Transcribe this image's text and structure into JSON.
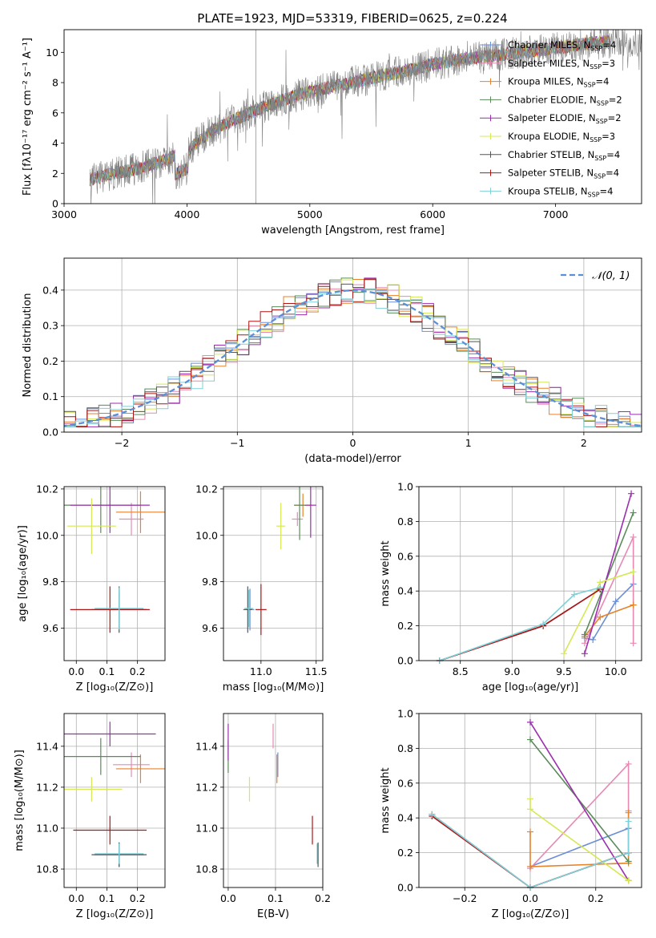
{
  "title": "PLATE=1923, MJD=53319, FIBERID=0625, z=0.224",
  "chart_data": [
    {
      "id": "spectrum",
      "type": "line",
      "xlabel": "wavelength [Angstrom, rest frame]",
      "ylabel": "Flux [fλ10⁻¹⁷ erg cm⁻² s⁻¹ A⁻¹]",
      "xlim": [
        3000,
        7700
      ],
      "ylim": [
        0,
        11.5
      ],
      "xticks": [
        "3000",
        "4000",
        "5000",
        "6000",
        "7000"
      ],
      "yticks": [
        "0",
        "2",
        "4",
        "6",
        "8",
        "10"
      ],
      "x": [
        3200,
        3400,
        3600,
        3800,
        4000,
        4200,
        4400,
        4600,
        4800,
        5000,
        5200,
        5400,
        5600,
        5800,
        6000,
        6200,
        6400,
        6600,
        6800,
        7000,
        7200,
        7400
      ],
      "values": [
        1.6,
        2.0,
        2.3,
        2.8,
        3.5,
        4.8,
        5.6,
        6.3,
        6.9,
        7.4,
        7.8,
        8.1,
        8.5,
        8.8,
        9.2,
        9.5,
        9.7,
        9.9,
        10.1,
        10.3,
        10.5,
        10.7
      ],
      "legend": [
        {
          "name": "Chabrier MILES, N",
          "n": "=4"
        },
        {
          "name": "Salpeter MILES, N",
          "n": "=3"
        },
        {
          "name": "Kroupa MILES, N",
          "n": "=4"
        },
        {
          "name": "Chabrier ELODIE, N",
          "n": "=2"
        },
        {
          "name": "Salpeter ELODIE, N",
          "n": "=2"
        },
        {
          "name": "Kroupa ELODIE, N",
          "n": "=3"
        },
        {
          "name": "Chabrier STELIB, N",
          "n": "=4"
        },
        {
          "name": "Salpeter STELIB, N",
          "n": "=4"
        },
        {
          "name": "Kroupa STELIB, N",
          "n": "=4"
        }
      ],
      "legend_sub": "SSP",
      "legend_loc": "upper right"
    },
    {
      "id": "residuals",
      "type": "histogram",
      "xlabel": "(data-model)/error",
      "ylabel": "Normed distribution",
      "xlim": [
        -2.5,
        2.5
      ],
      "ylim": [
        0,
        0.49
      ],
      "xticks": [
        "−2",
        "−1",
        "0",
        "1",
        "2"
      ],
      "yticks": [
        "0.0",
        "0.1",
        "0.2",
        "0.3",
        "0.4"
      ],
      "grid": true,
      "normal_label": "𝒩(0, 1)",
      "legend_loc": "upper right"
    },
    {
      "id": "age_vs_Z",
      "type": "errorbar",
      "xlabel": "Z [log₁₀(Z/Z⊙)]",
      "ylabel": "age  [log₁₀(age/yr)]",
      "xlim": [
        -0.04,
        0.29
      ],
      "ylim": [
        9.46,
        10.21
      ],
      "xticks": [
        "0.0",
        "0.1",
        "0.2"
      ],
      "yticks": [
        "9.6",
        "9.8",
        "10.0",
        "10.2"
      ],
      "grid": true,
      "points": [
        {
          "x": 0.14,
          "y": 9.68,
          "ex": 0.08,
          "ey": 0.08
        },
        {
          "x": 0.18,
          "y": 10.07,
          "ex": 0.04,
          "ey": 0.07
        },
        {
          "x": 0.21,
          "y": 10.1,
          "ex": 0.08,
          "ey": 0.09
        },
        {
          "x": 0.08,
          "y": 10.13,
          "ex": 0.13,
          "ey": 0.12
        },
        {
          "x": 0.11,
          "y": 10.13,
          "ex": 0.13,
          "ey": 0.12
        },
        {
          "x": 0.05,
          "y": 10.04,
          "ex": 0.08,
          "ey": 0.12
        },
        {
          "x": 0.14,
          "y": 9.68,
          "ex": 0.09,
          "ey": 0.1
        },
        {
          "x": 0.11,
          "y": 9.68,
          "ex": 0.13,
          "ey": 0.1
        },
        {
          "x": 0.14,
          "y": 9.685,
          "ex": 0.08,
          "ey": 0.09
        }
      ]
    },
    {
      "id": "age_vs_mass",
      "type": "errorbar",
      "xlabel": "mass [log₁₀(M/M⊙)]",
      "ylabel": "",
      "xlim": [
        10.66,
        11.56
      ],
      "ylim": [
        9.46,
        10.21
      ],
      "xticks": [
        "11.0",
        "11.5"
      ],
      "yticks": [
        "9.6",
        "9.8",
        "10.0",
        "10.2"
      ],
      "grid": true,
      "points": [
        {
          "x": 10.9,
          "y": 9.68,
          "ex": 0.04,
          "ey": 0.09
        },
        {
          "x": 11.33,
          "y": 10.07,
          "ex": 0.05,
          "ey": 0.03
        },
        {
          "x": 11.38,
          "y": 10.13,
          "ex": 0.08,
          "ey": 0.05
        },
        {
          "x": 11.35,
          "y": 10.13,
          "ex": 0.05,
          "ey": 0.15
        },
        {
          "x": 11.45,
          "y": 10.13,
          "ex": 0.05,
          "ey": 0.14
        },
        {
          "x": 11.18,
          "y": 10.04,
          "ex": 0.04,
          "ey": 0.1
        },
        {
          "x": 10.88,
          "y": 9.68,
          "ex": 0.04,
          "ey": 0.1
        },
        {
          "x": 11.0,
          "y": 9.68,
          "ex": 0.05,
          "ey": 0.11
        },
        {
          "x": 10.89,
          "y": 9.685,
          "ex": 0.04,
          "ey": 0.08
        }
      ]
    },
    {
      "id": "weight_vs_age",
      "type": "line",
      "xlabel": "age  [log₁₀(age/yr)]",
      "ylabel": "mass weight",
      "xlim": [
        8.1,
        10.25
      ],
      "ylim": [
        0,
        1.0
      ],
      "xticks": [
        "8.5",
        "9.0",
        "9.5",
        "10.0"
      ],
      "yticks": [
        "0.0",
        "0.2",
        "0.4",
        "0.6",
        "0.8",
        "1.0"
      ],
      "grid": true,
      "series": [
        {
          "x": [
            9.7,
            9.78,
            10.0,
            10.17
          ],
          "y": [
            0.13,
            0.12,
            0.34,
            0.44
          ]
        },
        {
          "x": [
            9.7,
            10.17,
            10.17
          ],
          "y": [
            0.1,
            0.71,
            0.1
          ]
        },
        {
          "x": [
            9.7,
            9.85,
            10.17,
            10.17
          ],
          "y": [
            0.14,
            0.25,
            0.32,
            0.32
          ]
        },
        {
          "x": [
            9.7,
            10.17
          ],
          "y": [
            0.15,
            0.85
          ]
        },
        {
          "x": [
            9.7,
            10.15
          ],
          "y": [
            0.04,
            0.96
          ]
        },
        {
          "x": [
            9.5,
            9.85,
            10.17
          ],
          "y": [
            0.04,
            0.45,
            0.51
          ]
        },
        {
          "x": [
            8.3,
            9.3,
            9.85
          ],
          "y": [
            0.0,
            0.2,
            0.41
          ]
        },
        {
          "x": [
            8.3,
            9.3,
            9.85
          ],
          "y": [
            0.0,
            0.2,
            0.41
          ]
        },
        {
          "x": [
            8.3,
            9.3,
            9.6,
            9.85
          ],
          "y": [
            0.0,
            0.21,
            0.38,
            0.42
          ]
        }
      ]
    },
    {
      "id": "mass_vs_Z",
      "type": "errorbar",
      "xlabel": "Z [log₁₀(Z/Z⊙)]",
      "ylabel": "mass [log₁₀(M/M⊙)]",
      "xlim": [
        -0.04,
        0.29
      ],
      "ylim": [
        10.71,
        11.56
      ],
      "xticks": [
        "0.0",
        "0.1",
        "0.2"
      ],
      "yticks": [
        "10.8",
        "11.0",
        "11.2",
        "11.4"
      ],
      "grid": true,
      "points": [
        {
          "x": 0.14,
          "y": 10.87,
          "ex": 0.08,
          "ey": 0.06
        },
        {
          "x": 0.18,
          "y": 11.31,
          "ex": 0.06,
          "ey": 0.06
        },
        {
          "x": 0.21,
          "y": 11.29,
          "ex": 0.08,
          "ey": 0.07
        },
        {
          "x": 0.08,
          "y": 11.35,
          "ex": 0.13,
          "ey": 0.09
        },
        {
          "x": 0.11,
          "y": 11.46,
          "ex": 0.15,
          "ey": 0.06
        },
        {
          "x": 0.05,
          "y": 11.19,
          "ex": 0.1,
          "ey": 0.06
        },
        {
          "x": 0.14,
          "y": 10.87,
          "ex": 0.09,
          "ey": 0.06
        },
        {
          "x": 0.11,
          "y": 10.99,
          "ex": 0.12,
          "ey": 0.07
        },
        {
          "x": 0.14,
          "y": 10.875,
          "ex": 0.08,
          "ey": 0.05
        }
      ]
    },
    {
      "id": "mass_vs_ebv",
      "type": "errorbar",
      "xlabel": "E(B-V)",
      "ylabel": "",
      "xlim": [
        -0.01,
        0.2
      ],
      "ylim": [
        10.71,
        11.56
      ],
      "xticks": [
        "0.0",
        "0.1",
        "0.2"
      ],
      "yticks": [
        "10.8",
        "11.0",
        "11.2",
        "11.4"
      ],
      "grid": true,
      "points": [
        {
          "x": 0.105,
          "y": 11.31,
          "ex": 0,
          "ey": 0.06
        },
        {
          "x": 0.095,
          "y": 11.45,
          "ex": 0,
          "ey": 0.06
        },
        {
          "x": 0.103,
          "y": 11.29,
          "ex": 0,
          "ey": 0.07
        },
        {
          "x": 0.0,
          "y": 11.35,
          "ex": 0,
          "ey": 0.08
        },
        {
          "x": 0.0,
          "y": 11.42,
          "ex": 0,
          "ey": 0.09
        },
        {
          "x": 0.045,
          "y": 11.19,
          "ex": 0,
          "ey": 0.06
        },
        {
          "x": 0.19,
          "y": 10.87,
          "ex": 0,
          "ey": 0.06
        },
        {
          "x": 0.178,
          "y": 10.99,
          "ex": 0,
          "ey": 0.07
        },
        {
          "x": 0.188,
          "y": 10.875,
          "ex": 0,
          "ey": 0.05
        }
      ]
    },
    {
      "id": "weight_vs_Z",
      "type": "line",
      "xlabel": "Z [log₁₀(Z/Z⊙)]",
      "ylabel": "mass weight",
      "xlim": [
        -0.34,
        0.34
      ],
      "ylim": [
        0,
        1.0
      ],
      "xticks": [
        "−0.2",
        "0.0",
        "0.2"
      ],
      "yticks": [
        "0.0",
        "0.2",
        "0.4",
        "0.6",
        "0.8",
        "1.0"
      ],
      "grid": true,
      "series": [
        {
          "x": [
            0.0,
            0.3
          ],
          "y": [
            0.12,
            0.34
          ]
        },
        {
          "x": [
            0.0,
            0.3,
            0.3
          ],
          "y": [
            0.11,
            0.71,
            0.44
          ]
        },
        {
          "x": [
            0.0,
            0.0,
            0.3,
            0.3
          ],
          "y": [
            0.32,
            0.12,
            0.14,
            0.43
          ]
        },
        {
          "x": [
            0.0,
            0.3
          ],
          "y": [
            0.85,
            0.15
          ]
        },
        {
          "x": [
            0.0,
            0.3
          ],
          "y": [
            0.95,
            0.04
          ]
        },
        {
          "x": [
            0.0,
            0.0,
            0.3
          ],
          "y": [
            0.51,
            0.45,
            0.04
          ]
        },
        {
          "x": [
            -0.3,
            0.0,
            0.3
          ],
          "y": [
            0.42,
            0.0,
            0.2
          ]
        },
        {
          "x": [
            -0.3,
            0.0,
            0.3
          ],
          "y": [
            0.41,
            0.0,
            0.2
          ]
        },
        {
          "x": [
            -0.3,
            0.0,
            0.3,
            0.3
          ],
          "y": [
            0.42,
            0.0,
            0.2,
            0.38
          ]
        }
      ]
    }
  ],
  "colors": [
    "#6b8fd6",
    "#e68ab4",
    "#e6822a",
    "#5a8a5a",
    "#9b2fae",
    "#d6e855",
    "#555555",
    "#b01414",
    "#7fd0d8"
  ]
}
